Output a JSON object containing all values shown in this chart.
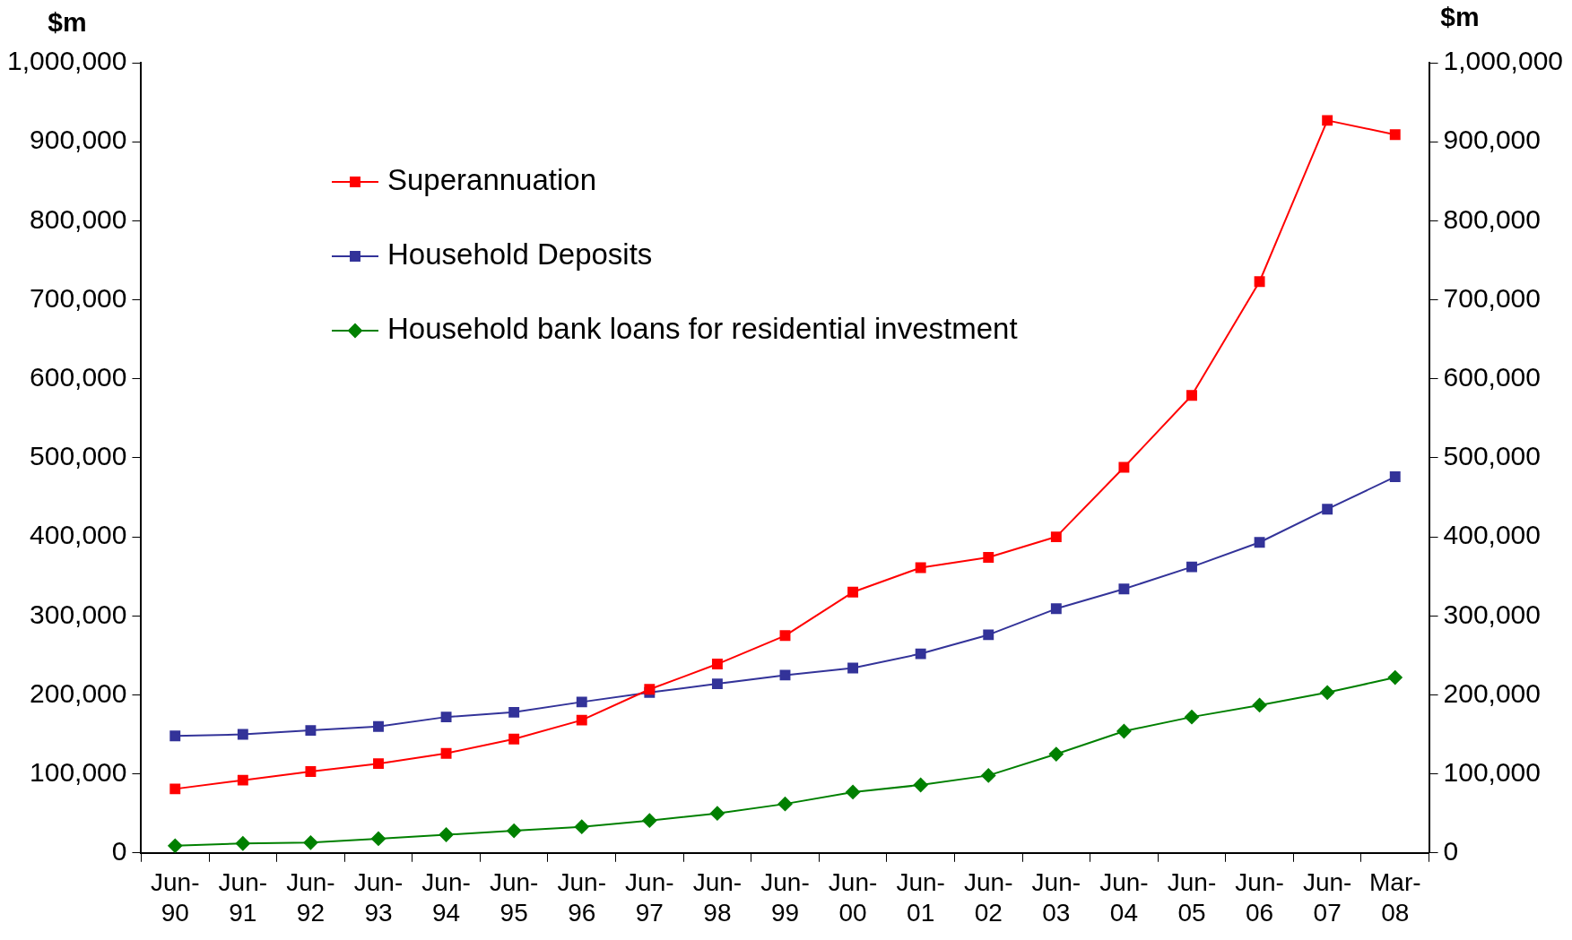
{
  "chart_data": {
    "type": "line",
    "ylabel": "$m",
    "y2label": "$m",
    "categories": [
      "Jun-90",
      "Jun-91",
      "Jun-92",
      "Jun-93",
      "Jun-94",
      "Jun-95",
      "Jun-96",
      "Jun-97",
      "Jun-98",
      "Jun-99",
      "Jun-00",
      "Jun-01",
      "Jun-02",
      "Jun-03",
      "Jun-04",
      "Jun-05",
      "Jun-06",
      "Jun-07",
      "Mar-08"
    ],
    "series": [
      {
        "name": "Superannuation",
        "color": "#ff0000",
        "marker": "square",
        "values": [
          81000,
          92000,
          103000,
          113000,
          126000,
          144000,
          168000,
          207000,
          239000,
          275000,
          330000,
          361000,
          374000,
          400000,
          488000,
          579000,
          723000,
          927000,
          909000
        ]
      },
      {
        "name": "Household Deposits",
        "color": "#333399",
        "marker": "square",
        "values": [
          148000,
          150000,
          155000,
          160000,
          172000,
          178000,
          191000,
          203000,
          214000,
          225000,
          234000,
          252000,
          276000,
          309000,
          334000,
          362000,
          393000,
          435000,
          476000
        ]
      },
      {
        "name": "Household bank loans for residential investment",
        "color": "#008000",
        "marker": "diamond",
        "values": [
          9000,
          12000,
          13000,
          18000,
          23000,
          28000,
          33000,
          41000,
          50000,
          62000,
          77000,
          86000,
          98000,
          125000,
          154000,
          172000,
          187000,
          203000,
          222000
        ]
      }
    ],
    "ylim": [
      0,
      1000000
    ],
    "y2lim": [
      0,
      1000000
    ],
    "yticks": [
      0,
      {
        "value": 100000,
        "label": "100,000"
      },
      {
        "value": 200000,
        "label": "200,000"
      },
      {
        "value": 300000,
        "label": "300,000"
      },
      {
        "value": 400000,
        "label": "400,000"
      },
      {
        "value": 500000,
        "label": "500,000"
      },
      {
        "value": 600000,
        "label": "600,000"
      },
      {
        "value": 700000,
        "label": "700,000"
      },
      {
        "value": 800000,
        "label": "800,000"
      },
      {
        "value": 900000,
        "label": "900,000"
      },
      {
        "value": 1000000,
        "label": "1,000,000"
      }
    ],
    "y2ticks": [
      0,
      {
        "value": 100000,
        "label": "100,000"
      },
      {
        "value": 200000,
        "label": "200,000"
      },
      {
        "value": 300000,
        "label": "300,000"
      },
      {
        "value": 400000,
        "label": "400,000"
      },
      {
        "value": 500000,
        "label": "500,000"
      },
      {
        "value": 600000,
        "label": "600,000"
      },
      {
        "value": 700000,
        "label": "700,000"
      },
      {
        "value": 800000,
        "label": "800,000"
      },
      {
        "value": 900000,
        "label": "900,000"
      },
      {
        "value": 1000000,
        "label": "1,000,000"
      }
    ],
    "legend": "top left",
    "grid": false,
    "line_style": "solid"
  }
}
